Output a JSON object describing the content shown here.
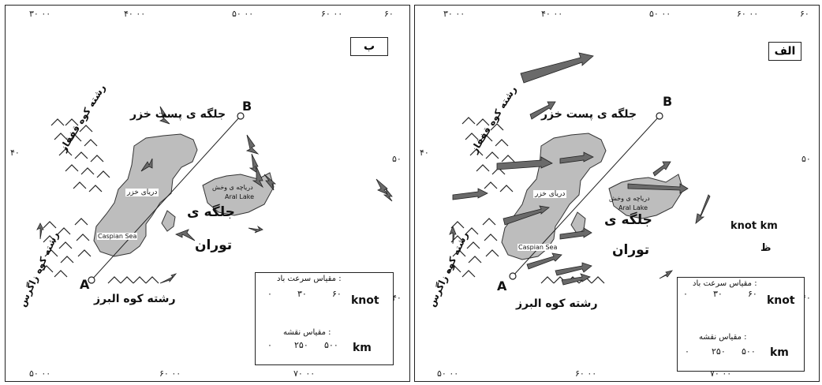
{
  "panels": {
    "left": {
      "label": "ب",
      "coords": {
        "top_1": "۳۰ ۰۰",
        "top_2": "۴۰ ۰۰",
        "top_3": "۵۰ ۰۰",
        "top_4": "۶۰ ۰۰",
        "top_5": "۶۰",
        "bottom_1": "۵۰ ۰۰",
        "bottom_2": "۶۰ ۰۰",
        "bottom_3": "۷۰ ۰۰",
        "left_lat": "۴۰",
        "right_lat_1": "۵۰",
        "right_lat_2": "۴۰"
      },
      "labels": {
        "south_caspian_depression": "جلگه ی پست خزر",
        "caucasus": "رشته کوه قفقاز",
        "caspian_fa": "دریای خزر",
        "caspian_en": "Caspian Sea",
        "aral_fa": "دریاچه ی وخش",
        "aral_en": "Aral Lake",
        "turan_1": "جلگه ی",
        "turan_2": "توران",
        "zagros": "رشته کوه زاگرس",
        "alborz": "رشته کوه البرز",
        "point_a": "A",
        "point_b": "B"
      },
      "scale": {
        "wind_title": "مقیاس سرعت باد :",
        "wind_ticks": [
          "۰",
          "۳۰",
          "۶۰"
        ],
        "wind_unit": "knot",
        "map_title": "مقیاس نقشه :",
        "map_ticks": [
          "۰",
          "۲۵۰",
          "۵۰۰"
        ],
        "map_unit": "km"
      }
    },
    "right": {
      "label": "الف",
      "coords": {
        "top_1": "۳۰ ۰۰",
        "top_2": "۴۰ ۰۰",
        "top_3": "۵۰ ۰۰",
        "top_4": "۶۰ ۰۰",
        "top_5": "۶۰",
        "bottom_1": "۵۰ ۰۰",
        "bottom_2": "۶۰ ۰۰",
        "bottom_3": "۷۰ ۰۰",
        "left_lat": "۴۰",
        "right_lat_1": "۵۰",
        "right_lat_2": "۴۰"
      },
      "labels": {
        "south_caspian_depression": "جلگه ی پست خزر",
        "caucasus": "رشته کوه قفقاز",
        "caspian_fa": "دریای خزر",
        "caspian_en": "Caspian Sea",
        "aral_fa": "دریاچه ی وخش",
        "aral_en": "Aral Lake",
        "turan_1": "جلگه ی",
        "turan_2": "توران",
        "zagros": "رشته کوه زاگرس",
        "alborz": "رشته کوه البرز",
        "point_a": "A",
        "point_b": "B",
        "stray_units": "knot km",
        "stray_char": "ظ"
      },
      "scale": {
        "wind_title": "مقیاس سرعت باد :",
        "wind_ticks": [
          "۰",
          "۳۰",
          "۶۰"
        ],
        "wind_unit": "knot",
        "map_title": "مقیاس نقشه :",
        "map_ticks": [
          "۰",
          "۲۵۰",
          "۵۰۰"
        ],
        "map_unit": "km"
      }
    }
  },
  "colors": {
    "land_fill": "#bdbdbd",
    "ink": "#1a1a1a",
    "arrow_fill": "#6a6a6a"
  }
}
